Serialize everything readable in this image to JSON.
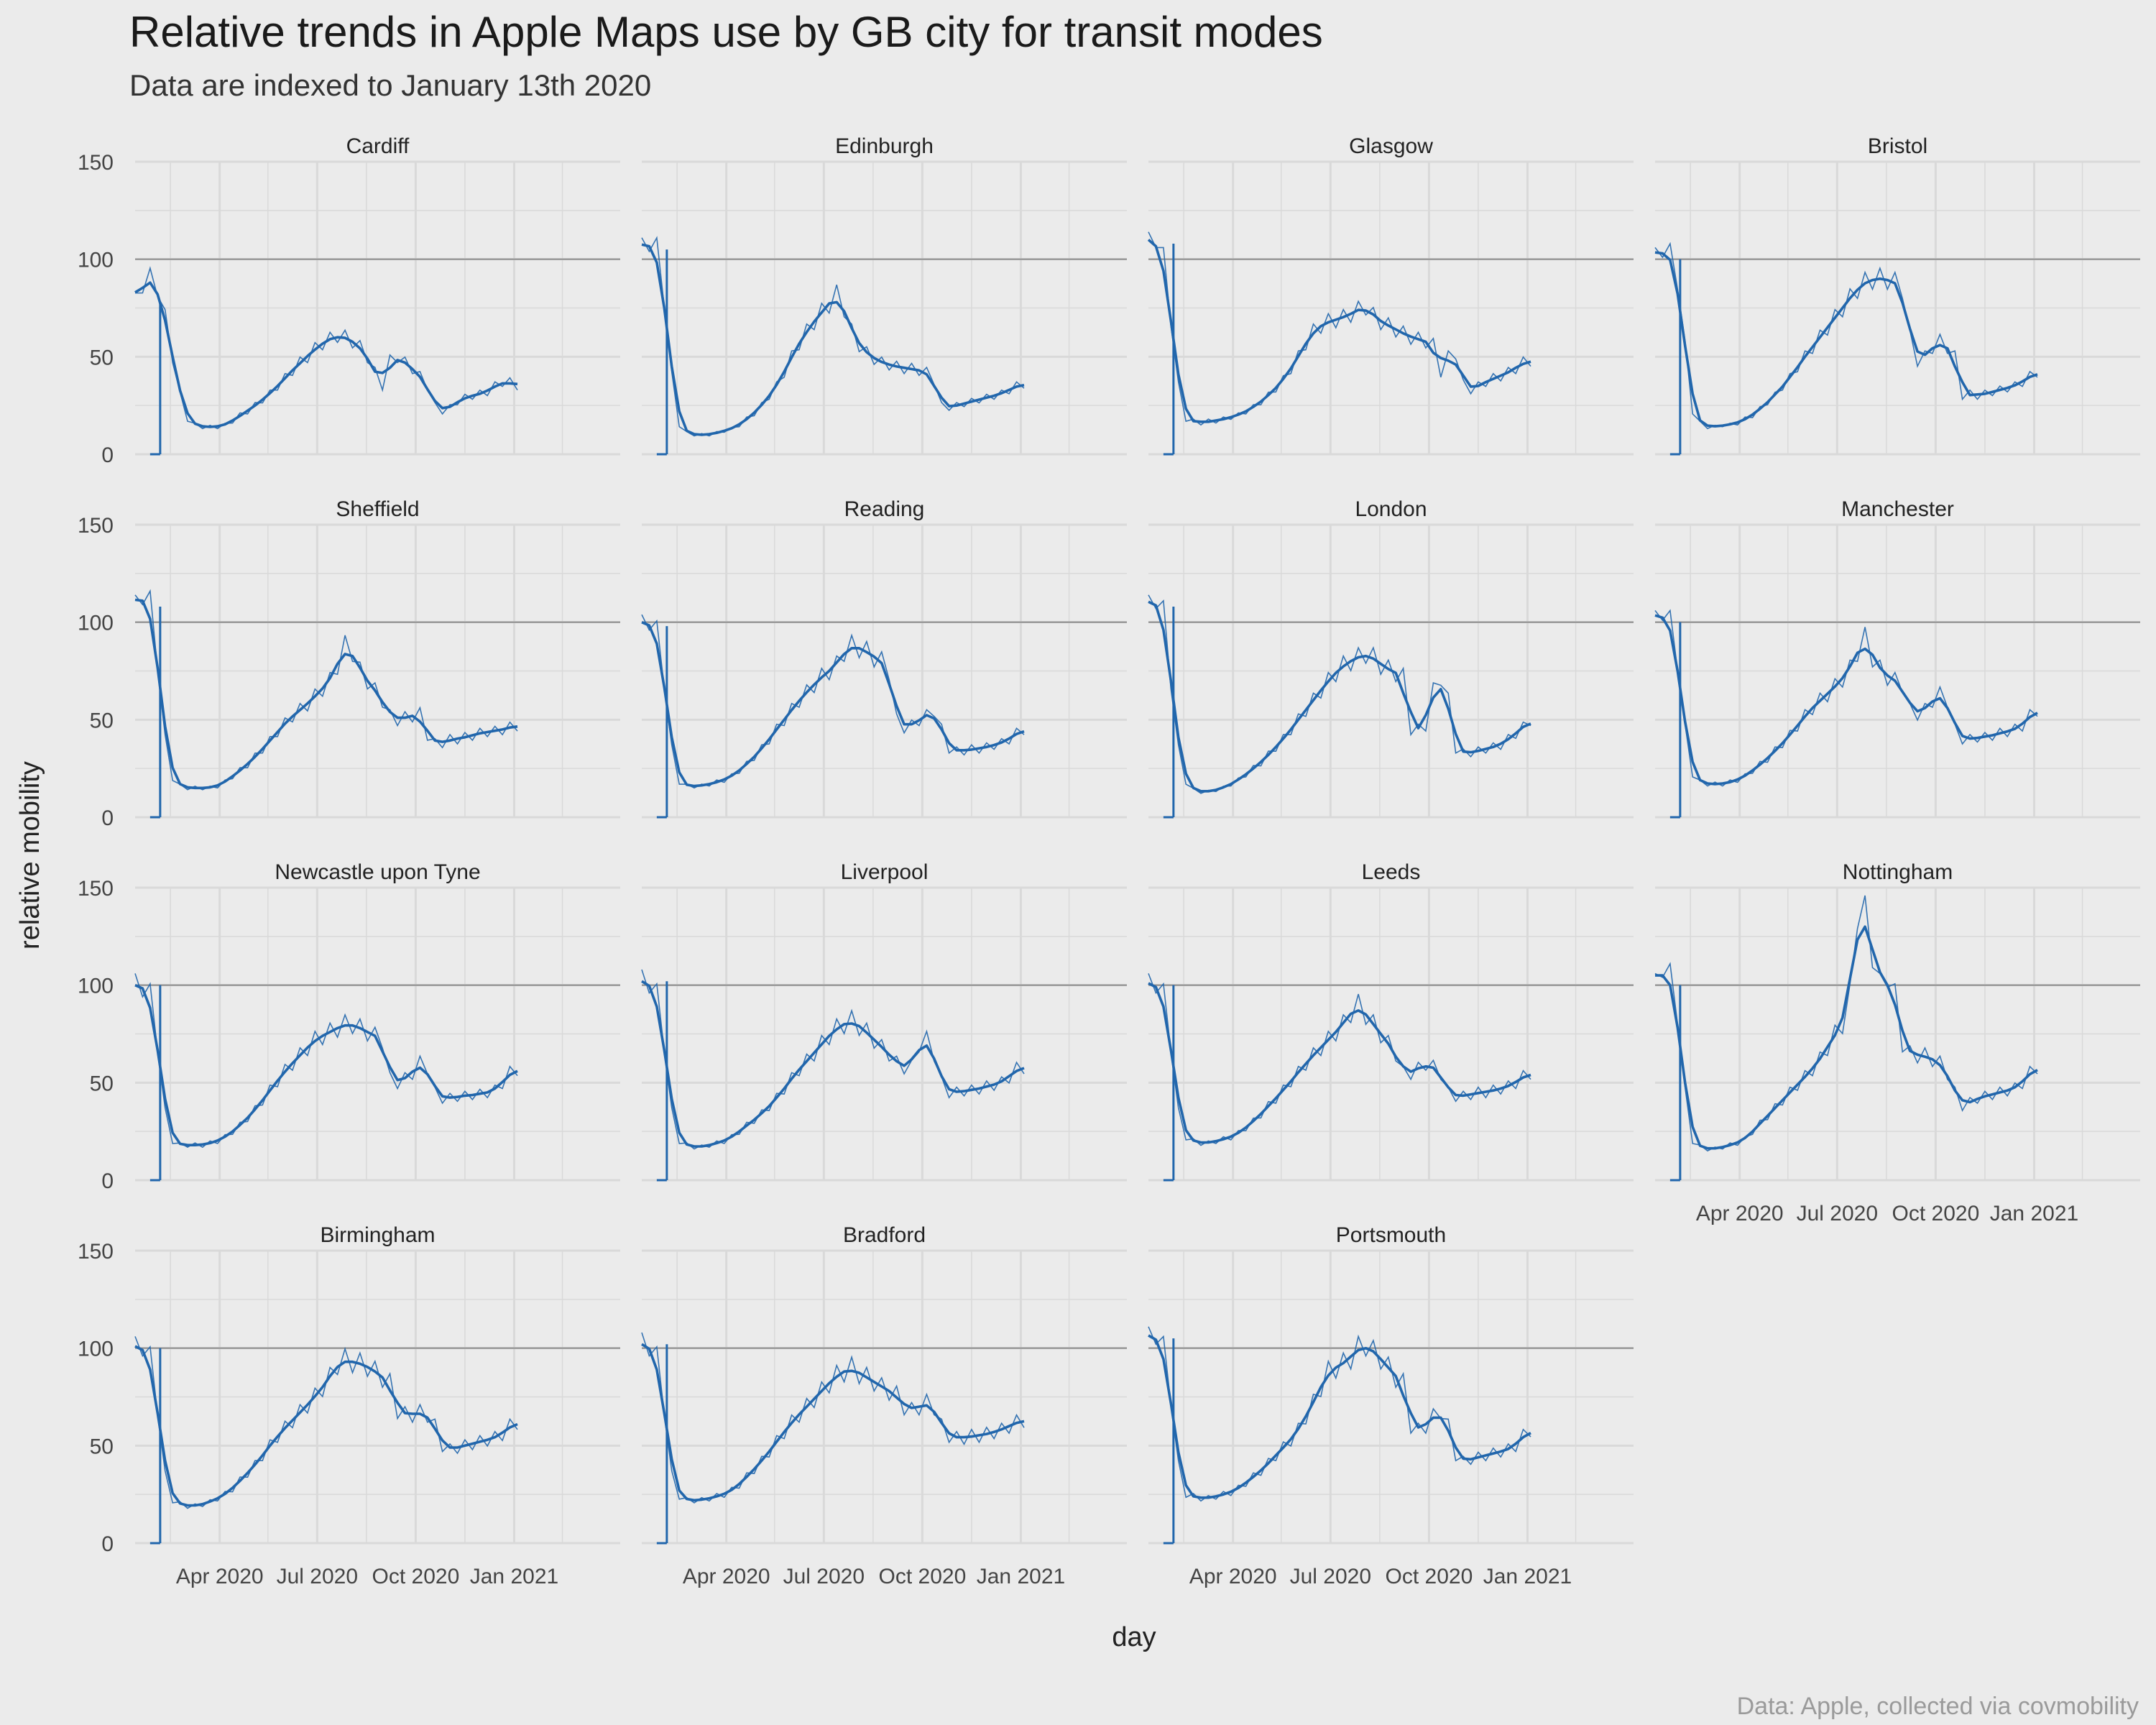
{
  "title": "Relative trends in Apple Maps use by GB city for transit modes",
  "subtitle": "Data are indexed to January 13th 2020",
  "caption": "Data: Apple, collected via covmobility",
  "colors": {
    "background": "#ebebeb",
    "grid": "#d9d9d9",
    "line": "#2166ac",
    "reference": "#8c8c8c"
  },
  "chart_data": {
    "type": "line",
    "layout": "small-multiples",
    "xlabel": "day",
    "ylabel": "relative mobility",
    "ylim": [
      0,
      150
    ],
    "yticks": [
      0,
      50,
      100,
      150
    ],
    "xlim": [
      "2020-01-13",
      "2021-04-10"
    ],
    "xticks": [
      {
        "date": "2020-04-01",
        "label": "Apr 2020"
      },
      {
        "date": "2020-07-01",
        "label": "Jul 2020"
      },
      {
        "date": "2020-10-01",
        "label": "Oct 2020"
      },
      {
        "date": "2021-01-01",
        "label": "Jan 2021"
      }
    ],
    "reference_line": 100,
    "data_start": "2020-01-13",
    "panels": [
      {
        "name": "Cardiff",
        "values": [
          78,
          88,
          90,
          86,
          70,
          50,
          30,
          18,
          15,
          14,
          14,
          14,
          15,
          17,
          20,
          22,
          25,
          28,
          31,
          35,
          39,
          43,
          47,
          50,
          54,
          57,
          59,
          61,
          60,
          58,
          55,
          50,
          42,
          35,
          48,
          50,
          47,
          44,
          40,
          35,
          25,
          22,
          24,
          27,
          29,
          30,
          31,
          32,
          35,
          37,
          37,
          35
        ]
      },
      {
        "name": "Edinburgh",
        "values": [
          105,
          110,
          105,
          80,
          40,
          15,
          11,
          10,
          10,
          10,
          11,
          12,
          13,
          15,
          18,
          21,
          25,
          30,
          35,
          42,
          50,
          57,
          63,
          68,
          73,
          77,
          82,
          75,
          63,
          56,
          52,
          49,
          47,
          46,
          45,
          44,
          44,
          43,
          42,
          38,
          25,
          24,
          25,
          26,
          27,
          28,
          29,
          30,
          31,
          33,
          35,
          36
        ]
      },
      {
        "name": "Glasgow",
        "values": [
          108,
          112,
          100,
          70,
          35,
          18,
          17,
          16,
          17,
          17,
          18,
          19,
          20,
          22,
          24,
          27,
          30,
          34,
          38,
          44,
          50,
          57,
          63,
          66,
          68,
          69,
          70,
          72,
          74,
          76,
          71,
          68,
          66,
          64,
          62,
          60,
          59,
          58,
          56,
          42,
          50,
          52,
          36,
          33,
          35,
          37,
          39,
          40,
          42,
          44,
          47,
          48
        ]
      },
      {
        "name": "Bristol",
        "values": [
          100,
          107,
          102,
          90,
          55,
          22,
          16,
          14,
          14,
          15,
          15,
          16,
          18,
          20,
          23,
          27,
          30,
          35,
          39,
          45,
          50,
          55,
          60,
          65,
          70,
          75,
          80,
          85,
          88,
          90,
          90,
          90,
          88,
          85,
          60,
          48,
          50,
          55,
          58,
          55,
          50,
          30,
          31,
          30,
          31,
          32,
          33,
          34,
          35,
          37,
          40,
          42
        ]
      },
      {
        "name": "Sheffield",
        "values": [
          108,
          115,
          110,
          80,
          40,
          20,
          16,
          15,
          15,
          15,
          15,
          16,
          18,
          21,
          24,
          27,
          31,
          35,
          39,
          44,
          48,
          52,
          55,
          58,
          62,
          66,
          70,
          78,
          88,
          85,
          75,
          70,
          65,
          60,
          52,
          50,
          51,
          52,
          53,
          42,
          38,
          38,
          40,
          40,
          41,
          42,
          43,
          44,
          44,
          45,
          46,
          47
        ]
      },
      {
        "name": "Reading",
        "values": [
          98,
          102,
          95,
          70,
          35,
          18,
          16,
          16,
          16,
          17,
          18,
          19,
          21,
          24,
          27,
          31,
          35,
          40,
          45,
          50,
          55,
          60,
          64,
          68,
          72,
          75,
          78,
          85,
          88,
          87,
          85,
          82,
          80,
          75,
          50,
          46,
          47,
          50,
          52,
          55,
          45,
          35,
          34,
          34,
          35,
          35,
          36,
          37,
          38,
          40,
          43,
          45
        ]
      },
      {
        "name": "London",
        "values": [
          108,
          113,
          105,
          70,
          35,
          18,
          14,
          13,
          13,
          14,
          15,
          17,
          19,
          22,
          25,
          28,
          32,
          36,
          40,
          45,
          50,
          55,
          60,
          65,
          70,
          74,
          78,
          80,
          82,
          84,
          82,
          78,
          76,
          74,
          72,
          45,
          45,
          47,
          65,
          72,
          60,
          35,
          33,
          33,
          34,
          35,
          36,
          37,
          40,
          43,
          46,
          50
        ]
      },
      {
        "name": "Manchester",
        "values": [
          100,
          107,
          100,
          80,
          45,
          22,
          18,
          17,
          17,
          17,
          18,
          19,
          21,
          24,
          27,
          30,
          34,
          38,
          42,
          47,
          52,
          56,
          60,
          63,
          67,
          71,
          76,
          85,
          92,
          82,
          76,
          72,
          70,
          68,
          55,
          53,
          55,
          60,
          63,
          60,
          45,
          40,
          40,
          41,
          41,
          42,
          43,
          44,
          45,
          47,
          52,
          55
        ]
      },
      {
        "name": "Newcastle upon Tyne",
        "values": [
          100,
          100,
          95,
          70,
          35,
          20,
          18,
          18,
          18,
          18,
          19,
          20,
          22,
          25,
          28,
          32,
          36,
          41,
          46,
          51,
          56,
          60,
          64,
          68,
          72,
          74,
          76,
          78,
          80,
          80,
          78,
          76,
          74,
          72,
          52,
          50,
          52,
          55,
          60,
          58,
          45,
          42,
          42,
          43,
          43,
          44,
          44,
          45,
          46,
          50,
          55,
          57
        ]
      },
      {
        "name": "Liverpool",
        "values": [
          102,
          102,
          95,
          70,
          35,
          20,
          18,
          17,
          17,
          18,
          19,
          20,
          22,
          25,
          28,
          31,
          34,
          38,
          42,
          47,
          52,
          57,
          61,
          65,
          70,
          74,
          78,
          80,
          82,
          79,
          76,
          72,
          68,
          65,
          60,
          58,
          58,
          70,
          72,
          65,
          50,
          45,
          45,
          46,
          46,
          47,
          48,
          49,
          50,
          53,
          57,
          58
        ]
      },
      {
        "name": "Leeds",
        "values": [
          100,
          102,
          95,
          70,
          35,
          22,
          20,
          19,
          19,
          20,
          21,
          22,
          24,
          27,
          30,
          34,
          38,
          42,
          46,
          51,
          55,
          60,
          64,
          68,
          72,
          76,
          80,
          86,
          90,
          85,
          80,
          75,
          70,
          65,
          55,
          55,
          57,
          60,
          58,
          55,
          45,
          43,
          43,
          44,
          45,
          45,
          46,
          47,
          48,
          50,
          53,
          55
        ]
      },
      {
        "name": "Nottingham",
        "values": [
          100,
          110,
          105,
          85,
          45,
          20,
          17,
          16,
          16,
          17,
          18,
          19,
          21,
          25,
          29,
          33,
          37,
          41,
          45,
          49,
          53,
          57,
          62,
          68,
          75,
          80,
          95,
          135,
          140,
          115,
          100,
          105,
          95,
          70,
          65,
          64,
          64,
          62,
          60,
          55,
          45,
          38,
          40,
          42,
          43,
          44,
          45,
          46,
          47,
          50,
          55,
          58
        ]
      },
      {
        "name": "Birmingham",
        "values": [
          100,
          102,
          95,
          70,
          35,
          22,
          20,
          19,
          19,
          20,
          21,
          23,
          25,
          28,
          32,
          36,
          40,
          45,
          50,
          55,
          59,
          63,
          67,
          71,
          75,
          80,
          85,
          92,
          94,
          93,
          92,
          91,
          88,
          85,
          82,
          68,
          66,
          66,
          67,
          66,
          60,
          50,
          48,
          49,
          50,
          51,
          52,
          53,
          54,
          56,
          60,
          62
        ]
      },
      {
        "name": "Bradford",
        "values": [
          102,
          102,
          95,
          70,
          35,
          24,
          22,
          22,
          22,
          23,
          24,
          25,
          27,
          30,
          34,
          38,
          42,
          47,
          52,
          57,
          62,
          66,
          70,
          74,
          78,
          82,
          86,
          88,
          90,
          87,
          85,
          83,
          80,
          78,
          76,
          70,
          68,
          70,
          72,
          70,
          60,
          55,
          54,
          54,
          55,
          55,
          56,
          57,
          58,
          60,
          62,
          63
        ]
      },
      {
        "name": "Portsmouth",
        "values": [
          105,
          108,
          100,
          75,
          40,
          25,
          24,
          23,
          23,
          24,
          25,
          26,
          28,
          31,
          34,
          37,
          41,
          45,
          49,
          53,
          58,
          65,
          72,
          80,
          88,
          90,
          92,
          95,
          100,
          102,
          98,
          95,
          90,
          85,
          82,
          60,
          58,
          60,
          65,
          68,
          60,
          45,
          42,
          43,
          44,
          45,
          46,
          47,
          48,
          50,
          55,
          58
        ]
      }
    ]
  }
}
